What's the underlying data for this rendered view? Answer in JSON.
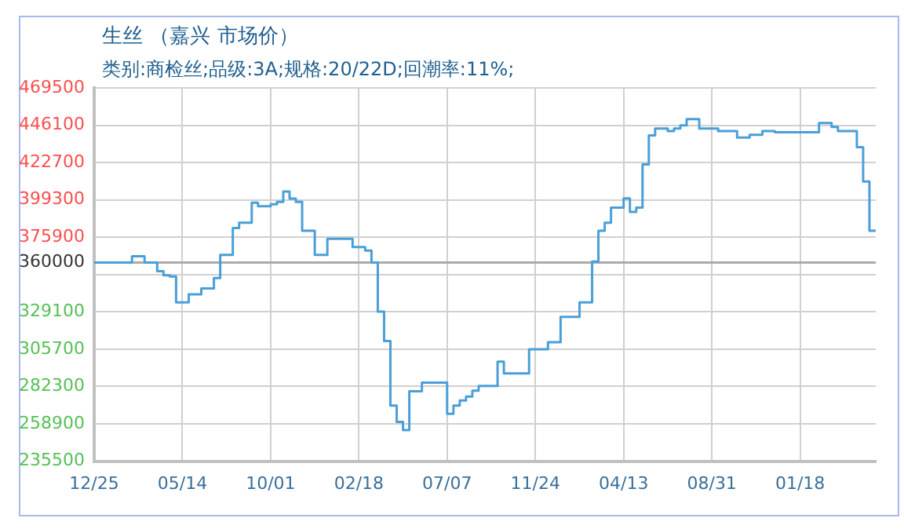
{
  "chart_data": {
    "type": "step",
    "title": "生丝 （嘉兴 市场价）",
    "subtitle": "类别:商检丝;品级:3A;规格:20/22D;回潮率:11%;",
    "categories": [
      "12/25",
      null,
      null,
      null,
      null,
      null,
      null,
      null,
      null,
      null,
      null,
      null,
      null,
      null,
      "05/14",
      null,
      null,
      null,
      null,
      null,
      null,
      null,
      null,
      null,
      null,
      null,
      null,
      null,
      "10/01",
      null,
      null,
      null,
      null,
      null,
      null,
      null,
      null,
      null,
      null,
      null,
      null,
      null,
      "02/18",
      null,
      null,
      null,
      null,
      null,
      null,
      null,
      null,
      null,
      null,
      null,
      null,
      null,
      "07/07",
      null,
      null,
      null,
      null,
      null,
      null,
      null,
      null,
      null,
      null,
      null,
      null,
      null,
      "11/24",
      null,
      null,
      null,
      null,
      null,
      null,
      null,
      null,
      null,
      null,
      null,
      null,
      null,
      "04/13",
      null,
      null,
      null,
      null,
      null,
      null,
      null,
      null,
      null,
      null,
      null,
      null,
      null,
      "08/31",
      null,
      null,
      null,
      null,
      null,
      null,
      null,
      null,
      null,
      null,
      null,
      null,
      null,
      "01/18",
      null,
      null,
      null,
      null,
      null,
      null,
      null,
      null,
      null,
      null,
      null,
      null
    ],
    "series": [
      {
        "color": "#4a9fd8",
        "values": [
          360000,
          360000,
          360000,
          360000,
          360000,
          360000,
          360000,
          364000,
          364000,
          360000,
          360000,
          354600,
          352000,
          351300,
          335000,
          335000,
          340100,
          340100,
          343800,
          343800,
          350300,
          364800,
          364800,
          381700,
          385000,
          385000,
          397600,
          395300,
          395300,
          396500,
          398000,
          404600,
          400100,
          398000,
          380000,
          380000,
          364800,
          364800,
          374900,
          374900,
          374900,
          374900,
          369800,
          369800,
          367500,
          360000,
          329300,
          310800,
          270300,
          260100,
          255000,
          279300,
          279300,
          284700,
          284700,
          284700,
          284700,
          265200,
          270300,
          273600,
          276000,
          279700,
          282700,
          282700,
          282700,
          297900,
          290500,
          290500,
          290500,
          290500,
          305700,
          305700,
          305700,
          310100,
          310100,
          326000,
          326000,
          326000,
          335100,
          335100,
          360700,
          379900,
          385000,
          394500,
          394500,
          400200,
          391800,
          394500,
          421500,
          439700,
          444100,
          444100,
          442400,
          444100,
          446000,
          449900,
          449900,
          444100,
          444100,
          444100,
          442400,
          442400,
          442400,
          438400,
          438400,
          440100,
          440100,
          442400,
          442400,
          441700,
          441700,
          441700,
          441700,
          441700,
          441700,
          441700,
          447500,
          447500,
          445000,
          442400,
          442400,
          442400,
          432300,
          410800,
          379900
        ]
      }
    ],
    "ylim": [
      235500,
      469500
    ],
    "yticks": [
      235500,
      258900,
      282300,
      305700,
      329100,
      {
        "value": 352500,
        "label": null
      },
      360000,
      375900,
      399300,
      422700,
      446100,
      469500
    ],
    "ref_lines": [
      {
        "axis": "y",
        "value": 360000,
        "color": "#aaaaaa"
      }
    ],
    "grid": true,
    "legend": false,
    "marker": "none",
    "line_style": "solid"
  }
}
